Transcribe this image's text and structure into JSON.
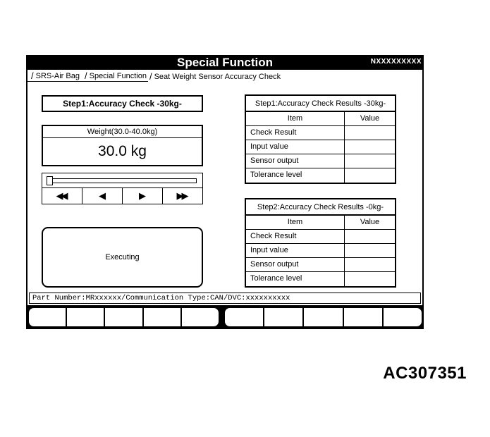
{
  "window": {
    "title": "Special Function",
    "code": "NXXXXXXXXX"
  },
  "breadcrumb": {
    "separator": "/",
    "items": [
      "SRS-Air Bag",
      "Special Function",
      "Seat Weight Sensor Accuracy Check"
    ]
  },
  "step_panel": {
    "header": "Step1:Accuracy Check -30kg-",
    "weight_label": "Weight(30.0-40.0kg)",
    "weight_value": "30.0 kg",
    "slider_buttons": {
      "fast_rewind": "◀◀",
      "step_down": "◀",
      "step_up": "▶",
      "fast_forward": "▶▶"
    },
    "status_button": "Executing"
  },
  "results_tables": [
    {
      "title": "Step1:Accuracy Check Results -30kg-",
      "columns": [
        "Item",
        "Value"
      ],
      "rows": [
        {
          "item": "Check Result",
          "value": ""
        },
        {
          "item": "Input value",
          "value": ""
        },
        {
          "item": "Sensor output",
          "value": ""
        },
        {
          "item": "Tolerance level",
          "value": ""
        }
      ]
    },
    {
      "title": "Step2:Accuracy Check Results -0kg-",
      "columns": [
        "Item",
        "Value"
      ],
      "rows": [
        {
          "item": "Check Result",
          "value": ""
        },
        {
          "item": "Input value",
          "value": ""
        },
        {
          "item": "Sensor output",
          "value": ""
        },
        {
          "item": "Tolerance level",
          "value": ""
        }
      ]
    }
  ],
  "status_bar": {
    "text": "Part Number:MRxxxxxx/Communication Type:CAN/DVC:xxxxxxxxxx"
  },
  "figure_code": "AC307351",
  "colors": {
    "foreground": "#000000",
    "background": "#ffffff"
  }
}
